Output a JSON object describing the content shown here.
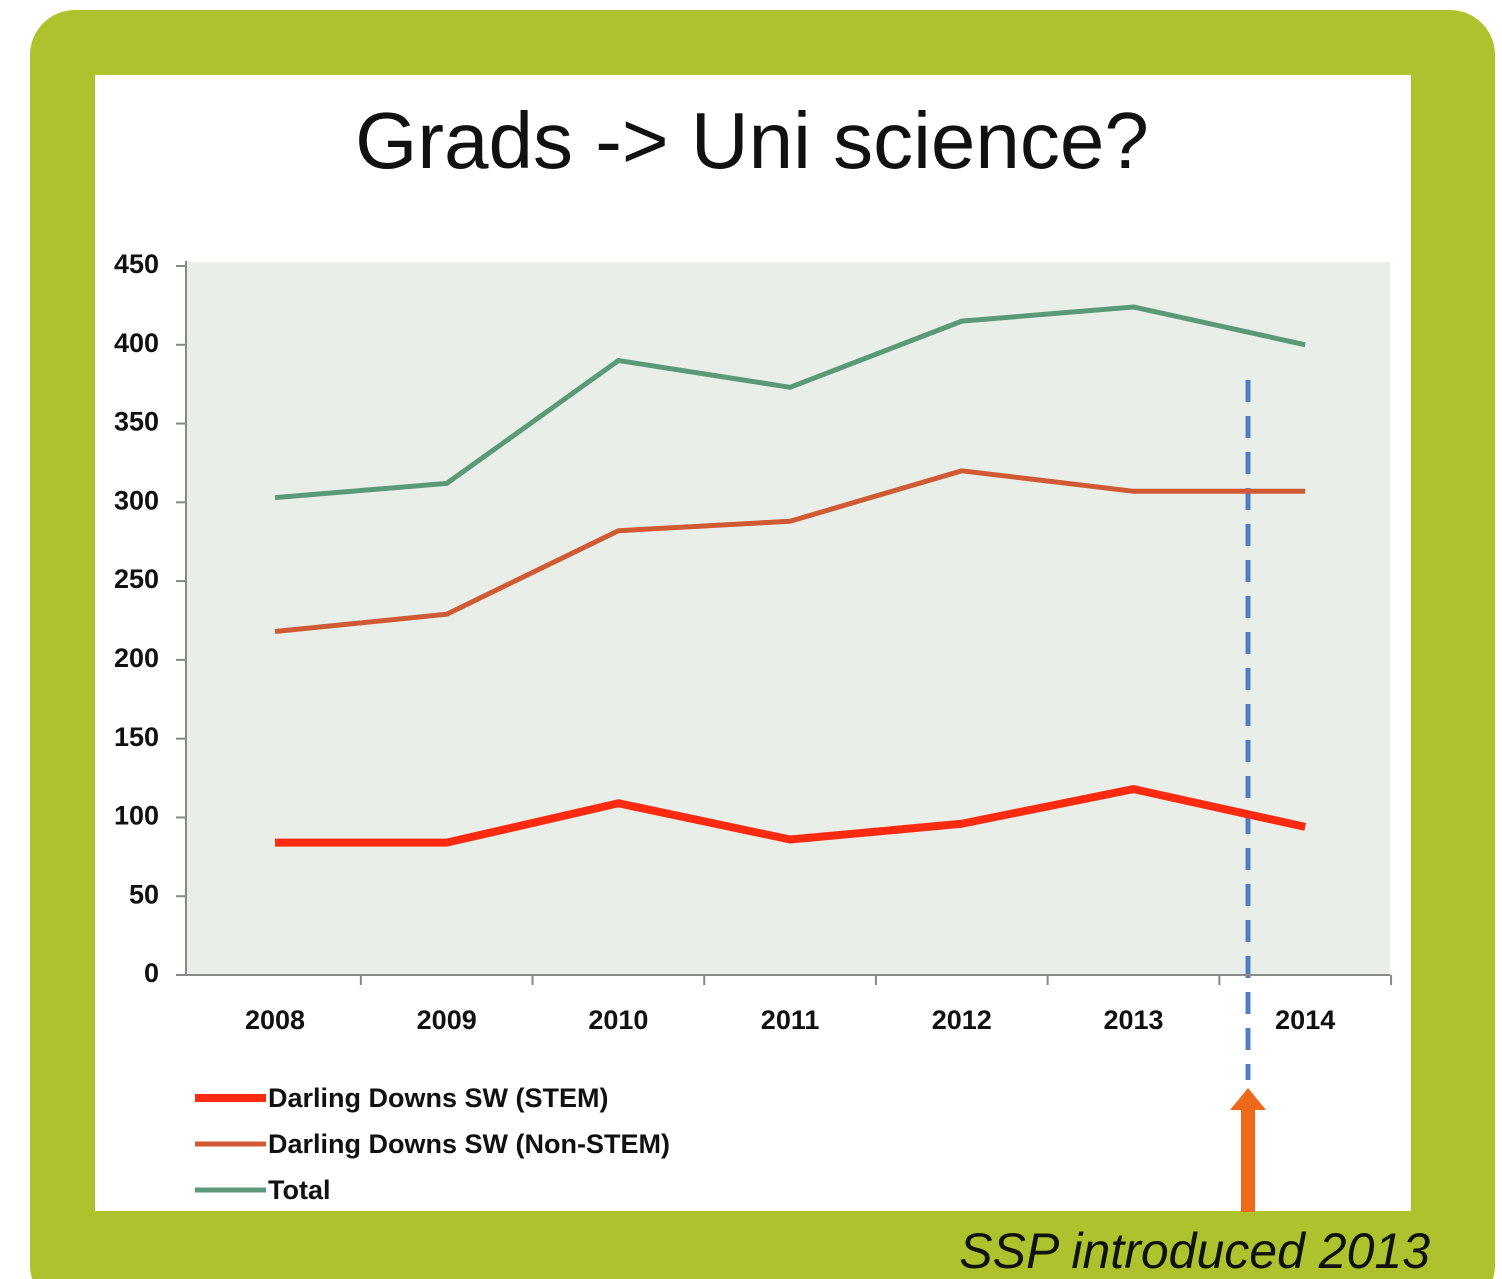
{
  "chart_data": {
    "type": "line",
    "title": "Grads -> Uni science?",
    "categories": [
      "2008",
      "2009",
      "2010",
      "2011",
      "2012",
      "2013",
      "2014"
    ],
    "series": [
      {
        "name": "Darling Downs SW (STEM)",
        "color": "#ff2a10",
        "values": [
          84,
          84,
          109,
          86,
          96,
          118,
          94
        ]
      },
      {
        "name": "Darling Downs SW (Non-STEM)",
        "color": "#cf5a34",
        "values": [
          218,
          229,
          282,
          288,
          320,
          307,
          307
        ]
      },
      {
        "name": "Total",
        "color": "#5a9a78",
        "values": [
          303,
          312,
          390,
          373,
          415,
          424,
          400
        ]
      }
    ],
    "ylim": [
      0,
      450
    ],
    "yticks": [
      0,
      50,
      100,
      150,
      200,
      250,
      300,
      350,
      400,
      450
    ],
    "grid": false,
    "legend": "bottom-left",
    "annotation": "SSP introduced 2013"
  }
}
